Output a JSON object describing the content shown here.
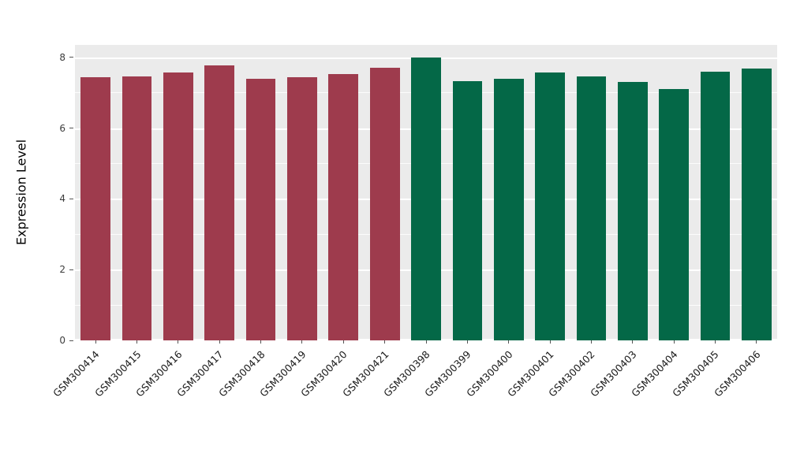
{
  "chart_data": {
    "type": "bar",
    "title": "",
    "xlabel": "",
    "ylabel": "Expression Level",
    "categories": [
      "GSM300414",
      "GSM300415",
      "GSM300416",
      "GSM300417",
      "GSM300418",
      "GSM300419",
      "GSM300420",
      "GSM300421",
      "GSM300398",
      "GSM300399",
      "GSM300400",
      "GSM300401",
      "GSM300402",
      "GSM300403",
      "GSM300404",
      "GSM300405",
      "GSM300406"
    ],
    "values": [
      7.43,
      7.45,
      7.57,
      7.78,
      7.39,
      7.44,
      7.52,
      7.7,
      8.0,
      7.32,
      7.4,
      7.57,
      7.46,
      7.31,
      7.1,
      7.6,
      7.68
    ],
    "groups": [
      "A",
      "A",
      "A",
      "A",
      "A",
      "A",
      "A",
      "A",
      "B",
      "B",
      "B",
      "B",
      "B",
      "B",
      "B",
      "B",
      "B"
    ],
    "group_colors": {
      "A": "#9E3B4D",
      "B": "#046847"
    },
    "ylim": [
      0,
      8.35
    ],
    "yticks": [
      0,
      2,
      4,
      6,
      8
    ],
    "minor_yticks": [
      1,
      3,
      5,
      7
    ],
    "panel_bg": "#EBEBEB",
    "grid_color": "#FFFFFF",
    "legend": "none",
    "grid": "on"
  }
}
